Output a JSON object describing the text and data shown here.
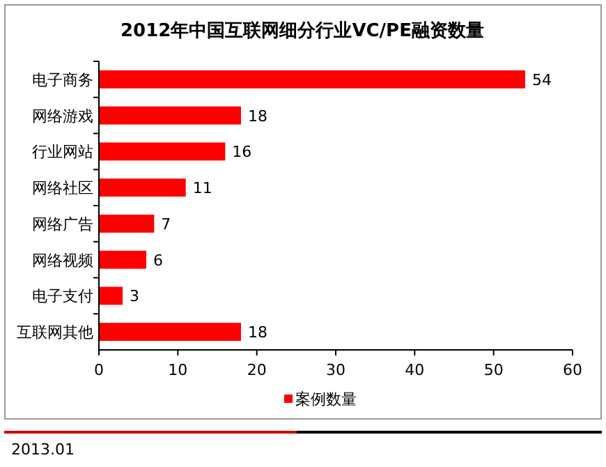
{
  "chart_data": {
    "type": "bar",
    "orientation": "horizontal",
    "title": "2012年中国互联网细分行业VC/PE融资数量",
    "categories": [
      "电子商务",
      "网络游戏",
      "行业网站",
      "网络社区",
      "网络广告",
      "网络视频",
      "电子支付",
      "互联网其他"
    ],
    "series": [
      {
        "name": "案例数量",
        "color": "#ff0000",
        "values": [
          54,
          18,
          16,
          11,
          7,
          6,
          3,
          18
        ]
      }
    ],
    "xlim": [
      0,
      60
    ],
    "xticks": [
      0,
      10,
      20,
      30,
      40,
      50,
      60
    ],
    "data_labels": true,
    "legend": "bottom",
    "grid": false,
    "annotations": [
      "2013.01"
    ]
  }
}
